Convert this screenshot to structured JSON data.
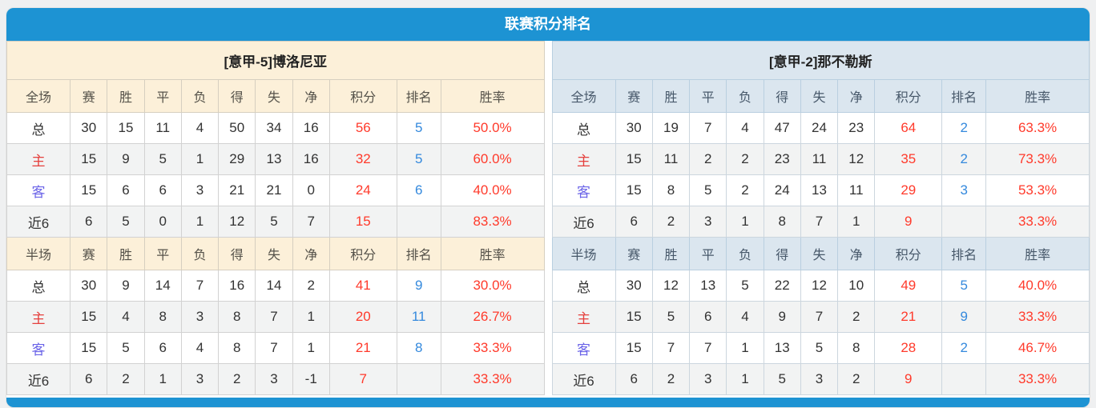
{
  "title": "联赛积分排名",
  "columns": [
    "赛",
    "胜",
    "平",
    "负",
    "得",
    "失",
    "净",
    "积分",
    "排名",
    "胜率"
  ],
  "colors": {
    "accent_blue": "#1d93d3",
    "left_header_bg": "#fcf0d9",
    "right_header_bg": "#dbe6ef",
    "points_red": "#ff3a2b",
    "rank_blue": "#3489dd",
    "home_label_red": "#e5403d",
    "away_label_blue": "#6a63e8",
    "alt_row_bg": "#f2f3f3"
  },
  "teams": [
    {
      "name": "[意甲-5]博洛尼亚",
      "full": {
        "section_label": "全场",
        "rows": [
          {
            "label": "总",
            "label_type": "total",
            "cells": [
              "30",
              "15",
              "11",
              "4",
              "50",
              "34",
              "16"
            ],
            "points": "56",
            "rank": "5",
            "rate": "50.0%"
          },
          {
            "label": "主",
            "label_type": "home",
            "cells": [
              "15",
              "9",
              "5",
              "1",
              "29",
              "13",
              "16"
            ],
            "points": "32",
            "rank": "5",
            "rate": "60.0%"
          },
          {
            "label": "客",
            "label_type": "away",
            "cells": [
              "15",
              "6",
              "6",
              "3",
              "21",
              "21",
              "0"
            ],
            "points": "24",
            "rank": "6",
            "rate": "40.0%"
          },
          {
            "label": "近6",
            "label_type": "recent",
            "cells": [
              "6",
              "5",
              "0",
              "1",
              "12",
              "5",
              "7"
            ],
            "points": "15",
            "rank": "",
            "rate": "83.3%"
          }
        ]
      },
      "half": {
        "section_label": "半场",
        "rows": [
          {
            "label": "总",
            "label_type": "total",
            "cells": [
              "30",
              "9",
              "14",
              "7",
              "16",
              "14",
              "2"
            ],
            "points": "41",
            "rank": "9",
            "rate": "30.0%"
          },
          {
            "label": "主",
            "label_type": "home",
            "cells": [
              "15",
              "4",
              "8",
              "3",
              "8",
              "7",
              "1"
            ],
            "points": "20",
            "rank": "11",
            "rate": "26.7%"
          },
          {
            "label": "客",
            "label_type": "away",
            "cells": [
              "15",
              "5",
              "6",
              "4",
              "8",
              "7",
              "1"
            ],
            "points": "21",
            "rank": "8",
            "rate": "33.3%"
          },
          {
            "label": "近6",
            "label_type": "recent",
            "cells": [
              "6",
              "2",
              "1",
              "3",
              "2",
              "3",
              "-1"
            ],
            "points": "7",
            "rank": "",
            "rate": "33.3%"
          }
        ]
      }
    },
    {
      "name": "[意甲-2]那不勒斯",
      "full": {
        "section_label": "全场",
        "rows": [
          {
            "label": "总",
            "label_type": "total",
            "cells": [
              "30",
              "19",
              "7",
              "4",
              "47",
              "24",
              "23"
            ],
            "points": "64",
            "rank": "2",
            "rate": "63.3%"
          },
          {
            "label": "主",
            "label_type": "home",
            "cells": [
              "15",
              "11",
              "2",
              "2",
              "23",
              "11",
              "12"
            ],
            "points": "35",
            "rank": "2",
            "rate": "73.3%"
          },
          {
            "label": "客",
            "label_type": "away",
            "cells": [
              "15",
              "8",
              "5",
              "2",
              "24",
              "13",
              "11"
            ],
            "points": "29",
            "rank": "3",
            "rate": "53.3%"
          },
          {
            "label": "近6",
            "label_type": "recent",
            "cells": [
              "6",
              "2",
              "3",
              "1",
              "8",
              "7",
              "1"
            ],
            "points": "9",
            "rank": "",
            "rate": "33.3%"
          }
        ]
      },
      "half": {
        "section_label": "半场",
        "rows": [
          {
            "label": "总",
            "label_type": "total",
            "cells": [
              "30",
              "12",
              "13",
              "5",
              "22",
              "12",
              "10"
            ],
            "points": "49",
            "rank": "5",
            "rate": "40.0%"
          },
          {
            "label": "主",
            "label_type": "home",
            "cells": [
              "15",
              "5",
              "6",
              "4",
              "9",
              "7",
              "2"
            ],
            "points": "21",
            "rank": "9",
            "rate": "33.3%"
          },
          {
            "label": "客",
            "label_type": "away",
            "cells": [
              "15",
              "7",
              "7",
              "1",
              "13",
              "5",
              "8"
            ],
            "points": "28",
            "rank": "2",
            "rate": "46.7%"
          },
          {
            "label": "近6",
            "label_type": "recent",
            "cells": [
              "6",
              "2",
              "3",
              "1",
              "5",
              "3",
              "2"
            ],
            "points": "9",
            "rank": "",
            "rate": "33.3%"
          }
        ]
      }
    }
  ]
}
